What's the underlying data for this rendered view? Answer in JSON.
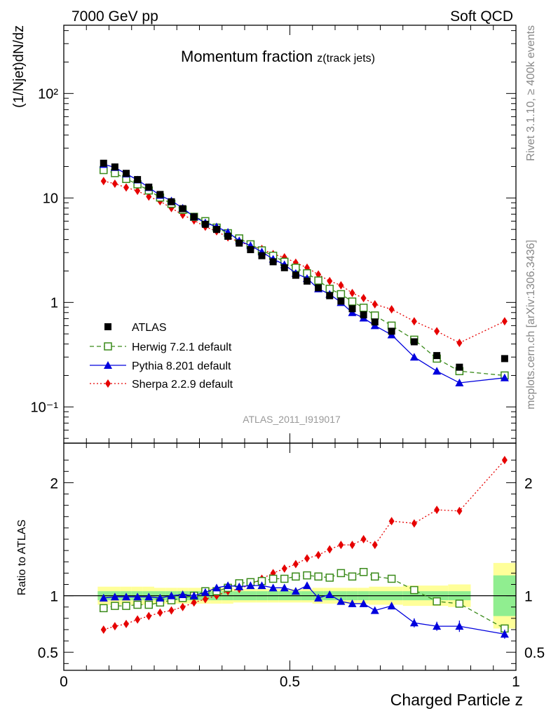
{
  "header": {
    "left": "7000 GeV pp",
    "right": "Soft QCD"
  },
  "side_labels": {
    "rivet": "Rivet 3.1.10, ≥ 400k events",
    "mcplots": "mcplots.cern.ch [arXiv:1306.3436]"
  },
  "watermark": "ATLAS_2011_I919017",
  "chart_data": [
    {
      "type": "line",
      "title": "Momentum fraction",
      "title_sub": "z(track jets)",
      "ylabel": "(1/Njet)dN/dz",
      "yscale": "log",
      "ylim": [
        0.045,
        450
      ],
      "xlim": [
        0,
        1
      ],
      "y_ticks": [
        "10⁻¹",
        "1",
        "10",
        "10²"
      ],
      "legend_position": "lower-left",
      "x": [
        0.088,
        0.113,
        0.138,
        0.163,
        0.188,
        0.213,
        0.238,
        0.263,
        0.288,
        0.313,
        0.338,
        0.363,
        0.388,
        0.413,
        0.438,
        0.463,
        0.488,
        0.513,
        0.538,
        0.563,
        0.588,
        0.613,
        0.638,
        0.663,
        0.688,
        0.725,
        0.775,
        0.825,
        0.875,
        0.975
      ],
      "series": [
        {
          "name": "ATLAS",
          "color": "#000000",
          "marker": "square",
          "values": [
            21.5,
            19.8,
            17.2,
            15.0,
            12.7,
            10.8,
            9.2,
            7.9,
            6.6,
            5.6,
            5.0,
            4.3,
            3.7,
            3.2,
            2.8,
            2.45,
            2.15,
            1.82,
            1.6,
            1.38,
            1.16,
            1.03,
            0.87,
            0.76,
            0.65,
            0.53,
            0.42,
            0.31,
            0.24,
            0.29
          ]
        },
        {
          "name": "Herwig 7.2.1 default",
          "color": "#3a8a1a",
          "marker": "open-square",
          "dash": "6,4",
          "values": [
            18.5,
            17.3,
            15.2,
            13.5,
            11.8,
            10.1,
            8.8,
            7.7,
            6.6,
            6.0,
            5.2,
            4.6,
            4.1,
            3.6,
            3.15,
            2.8,
            2.45,
            2.15,
            1.9,
            1.62,
            1.35,
            1.2,
            1.02,
            0.89,
            0.75,
            0.6,
            0.44,
            0.29,
            0.22,
            0.2
          ]
        },
        {
          "name": "Pythia 8.201 default",
          "color": "#0000dd",
          "marker": "triangle",
          "values": [
            21.0,
            19.6,
            17.0,
            14.9,
            12.6,
            10.6,
            9.4,
            8.0,
            6.6,
            5.8,
            5.3,
            4.7,
            3.9,
            3.5,
            3.05,
            2.6,
            2.3,
            1.9,
            1.7,
            1.35,
            1.2,
            1.0,
            0.8,
            0.71,
            0.6,
            0.49,
            0.3,
            0.22,
            0.17,
            0.19
          ]
        },
        {
          "name": "Sherpa 2.2.9 default",
          "color": "#e60000",
          "marker": "diamond",
          "dash": "2,3",
          "values": [
            14.5,
            13.7,
            12.6,
            11.7,
            10.3,
            9.3,
            8.0,
            6.9,
            6.1,
            5.3,
            4.8,
            4.2,
            3.8,
            3.5,
            3.25,
            2.9,
            2.7,
            2.4,
            2.15,
            1.85,
            1.6,
            1.46,
            1.23,
            1.1,
            0.96,
            0.86,
            0.66,
            0.53,
            0.41,
            0.66
          ]
        }
      ]
    },
    {
      "type": "line",
      "ylabel": "Ratio to ATLAS",
      "xlabel": "Charged Particle z",
      "ylim": [
        0.34,
        2.35
      ],
      "xlim": [
        0,
        1
      ],
      "y_ticks": [
        "0.5",
        "1",
        "2"
      ],
      "x_ticks": [
        "0",
        "0.5",
        "1"
      ],
      "band_edges": [
        0.075,
        0.1,
        0.125,
        0.15,
        0.175,
        0.2,
        0.225,
        0.25,
        0.275,
        0.3,
        0.325,
        0.35,
        0.375,
        0.4,
        0.425,
        0.45,
        0.475,
        0.5,
        0.525,
        0.55,
        0.575,
        0.6,
        0.625,
        0.65,
        0.675,
        0.7,
        0.75,
        0.8,
        0.85,
        0.9,
        0.95,
        1.0
      ],
      "stat_band": [
        0.04,
        0.04,
        0.04,
        0.04,
        0.04,
        0.04,
        0.04,
        0.04,
        0.04,
        0.04,
        0.04,
        0.04,
        0.04,
        0.04,
        0.04,
        0.04,
        0.04,
        0.04,
        0.04,
        0.04,
        0.04,
        0.04,
        0.04,
        0.04,
        0.04,
        0.04,
        0.04,
        0.04,
        0.04,
        0.0,
        0.18
      ],
      "syst_band": [
        0.08,
        0.08,
        0.08,
        0.08,
        0.08,
        0.07,
        0.07,
        0.07,
        0.07,
        0.07,
        0.07,
        0.07,
        0.06,
        0.06,
        0.06,
        0.06,
        0.06,
        0.06,
        0.06,
        0.07,
        0.07,
        0.07,
        0.07,
        0.07,
        0.08,
        0.08,
        0.09,
        0.09,
        0.1,
        0.0,
        0.29
      ],
      "band_colors": {
        "stat": "#90ee90",
        "syst": "#ffff99"
      },
      "x": [
        0.088,
        0.113,
        0.138,
        0.163,
        0.188,
        0.213,
        0.238,
        0.263,
        0.288,
        0.313,
        0.338,
        0.363,
        0.388,
        0.413,
        0.438,
        0.463,
        0.488,
        0.513,
        0.538,
        0.563,
        0.588,
        0.613,
        0.638,
        0.663,
        0.688,
        0.725,
        0.775,
        0.825,
        0.875,
        0.975
      ],
      "series": [
        {
          "name": "Herwig 7.2.1 default",
          "color": "#3a8a1a",
          "marker": "open-square",
          "dash": "6,4",
          "values": [
            0.89,
            0.91,
            0.91,
            0.92,
            0.92,
            0.94,
            0.96,
            0.98,
            1.0,
            1.04,
            1.04,
            1.07,
            1.11,
            1.12,
            1.13,
            1.15,
            1.15,
            1.17,
            1.18,
            1.17,
            1.16,
            1.2,
            1.17,
            1.21,
            1.17,
            1.15,
            1.05,
            0.95,
            0.93,
            0.71
          ]
        },
        {
          "name": "Pythia 8.201 default",
          "color": "#0000dd",
          "marker": "triangle",
          "values": [
            0.98,
            0.99,
            0.99,
            0.99,
            0.99,
            0.98,
            1.0,
            1.01,
            1.0,
            1.03,
            1.07,
            1.09,
            1.08,
            1.09,
            1.09,
            1.07,
            1.07,
            1.04,
            1.09,
            0.98,
            1.01,
            0.95,
            0.93,
            0.93,
            0.87,
            0.91,
            0.76,
            0.73,
            0.73,
            0.66
          ],
          "errors": [
            0.01,
            0.01,
            0.01,
            0.01,
            0.01,
            0.01,
            0.01,
            0.01,
            0.01,
            0.01,
            0.01,
            0.01,
            0.01,
            0.01,
            0.01,
            0.01,
            0.01,
            0.02,
            0.02,
            0.02,
            0.03,
            0.03,
            0.03,
            0.03,
            0.03,
            0.03,
            0.04,
            0.04,
            0.05,
            0.04
          ]
        },
        {
          "name": "Sherpa 2.2.9 default",
          "color": "#e60000",
          "marker": "diamond",
          "dash": "2,3",
          "values": [
            0.7,
            0.73,
            0.75,
            0.79,
            0.82,
            0.85,
            0.87,
            0.9,
            0.94,
            0.97,
            1.0,
            1.04,
            1.06,
            1.1,
            1.15,
            1.2,
            1.24,
            1.28,
            1.33,
            1.36,
            1.41,
            1.45,
            1.45,
            1.5,
            1.45,
            1.66,
            1.64,
            1.76,
            1.75,
            2.2
          ]
        }
      ]
    }
  ]
}
